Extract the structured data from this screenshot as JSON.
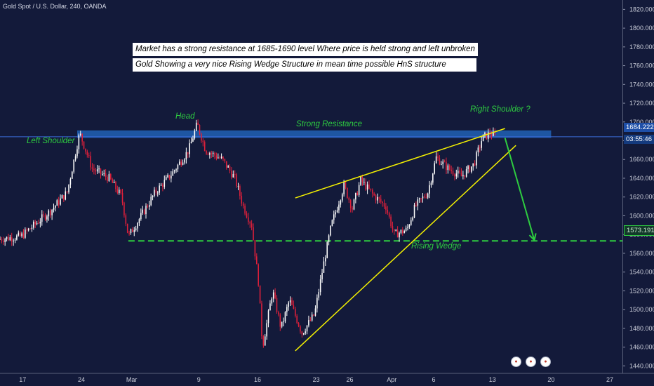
{
  "symbol": "Gold Spot / U.S. Dollar, 240, OANDA",
  "notes": [
    "Market has a strong resistance at 1685-1690 level Where price is held strong and left unbroken",
    "Gold Showing a very nice Rising Wedge Structure in mean time possible HnS structure"
  ],
  "annotations": {
    "left_shoulder": "Left Shoulder",
    "head": "Head",
    "strong_resistance": "Strong Resistance",
    "right_shoulder": "Right Shoulder ?",
    "rising_wedge": "Rising Wedge"
  },
  "price_badges": {
    "current_price": "1684.222",
    "countdown": "03:55:46",
    "support_price": "1573.191"
  },
  "event_icons": [
    "flag-icon",
    "flag-icon",
    "flag-icon"
  ],
  "colors": {
    "background": "#131a3a",
    "candle_up": "#ffffff",
    "candle_down": "#e0203a",
    "annotation_green": "#2ecc40",
    "wedge_yellow": "#f5f200",
    "resistance_zone": "#1f5aa8",
    "support_line": "#2ecc40"
  },
  "chart_data": {
    "type": "candlestick",
    "y_ticks": [
      "1820.000",
      "1800.000",
      "1780.000",
      "1760.000",
      "1740.000",
      "1720.000",
      "1700.000",
      "1680.000",
      "1660.000",
      "1640.000",
      "1620.000",
      "1600.000",
      "1580.000",
      "1560.000",
      "1540.000",
      "1520.000",
      "1500.000",
      "1480.000",
      "1460.000",
      "1440.000"
    ],
    "y_tick_values": [
      1820,
      1800,
      1780,
      1760,
      1740,
      1720,
      1700,
      1680,
      1660,
      1640,
      1620,
      1600,
      1580,
      1560,
      1540,
      1520,
      1500,
      1480,
      1460,
      1440
    ],
    "ylim": [
      1432,
      1830
    ],
    "x_ticks": [
      "17",
      "24",
      "Mar",
      "9",
      "16",
      "23",
      "26",
      "Apr",
      "6",
      "13",
      "20",
      "27"
    ],
    "x_tick_days": [
      0,
      7,
      13,
      21,
      28,
      35,
      39,
      44,
      49,
      56,
      63,
      70
    ],
    "xlim_days": [
      -2.7,
      71.5
    ],
    "price_path": [
      {
        "day": -2.7,
        "price": 1575
      },
      {
        "day": 0,
        "price": 1578
      },
      {
        "day": 3.5,
        "price": 1605
      },
      {
        "day": 5.5,
        "price": 1625
      },
      {
        "day": 7,
        "price": 1688
      },
      {
        "day": 8.5,
        "price": 1650
      },
      {
        "day": 10.5,
        "price": 1640
      },
      {
        "day": 12,
        "price": 1620
      },
      {
        "day": 12.8,
        "price": 1578
      },
      {
        "day": 14,
        "price": 1595
      },
      {
        "day": 16,
        "price": 1625
      },
      {
        "day": 18,
        "price": 1645
      },
      {
        "day": 20,
        "price": 1670
      },
      {
        "day": 21,
        "price": 1698
      },
      {
        "day": 22,
        "price": 1670
      },
      {
        "day": 24,
        "price": 1660
      },
      {
        "day": 25.5,
        "price": 1640
      },
      {
        "day": 26.5,
        "price": 1610
      },
      {
        "day": 27.5,
        "price": 1590
      },
      {
        "day": 28.3,
        "price": 1530
      },
      {
        "day": 28.8,
        "price": 1460
      },
      {
        "day": 30,
        "price": 1520
      },
      {
        "day": 31,
        "price": 1480
      },
      {
        "day": 32,
        "price": 1510
      },
      {
        "day": 33.5,
        "price": 1475
      },
      {
        "day": 35,
        "price": 1495
      },
      {
        "day": 36,
        "price": 1545
      },
      {
        "day": 37,
        "price": 1590
      },
      {
        "day": 38.5,
        "price": 1632
      },
      {
        "day": 39.5,
        "price": 1608
      },
      {
        "day": 40.5,
        "price": 1638
      },
      {
        "day": 42,
        "price": 1622
      },
      {
        "day": 43.5,
        "price": 1610
      },
      {
        "day": 44.5,
        "price": 1580
      },
      {
        "day": 46,
        "price": 1585
      },
      {
        "day": 47,
        "price": 1610
      },
      {
        "day": 48.5,
        "price": 1625
      },
      {
        "day": 49.5,
        "price": 1662
      },
      {
        "day": 51,
        "price": 1650
      },
      {
        "day": 52.5,
        "price": 1642
      },
      {
        "day": 54,
        "price": 1655
      },
      {
        "day": 55,
        "price": 1683
      },
      {
        "day": 56,
        "price": 1688
      },
      {
        "day": 56.5,
        "price": 1684
      }
    ],
    "resistance_zone": {
      "from_day": 6.5,
      "to_day": 63,
      "low": 1683,
      "high": 1691
    },
    "current_price_line": 1684.222,
    "support_line": 1573.191,
    "wedge_lines": [
      {
        "from": {
          "day": 32.5,
          "price": 1619
        },
        "to": {
          "day": 57.5,
          "price": 1693
        }
      },
      {
        "from": {
          "day": 32.5,
          "price": 1456
        },
        "to": {
          "day": 58.8,
          "price": 1675
        }
      }
    ],
    "projection_arrow": {
      "from": {
        "day": 57.5,
        "price": 1683
      },
      "to": {
        "day": 61,
        "price": 1574
      }
    }
  }
}
